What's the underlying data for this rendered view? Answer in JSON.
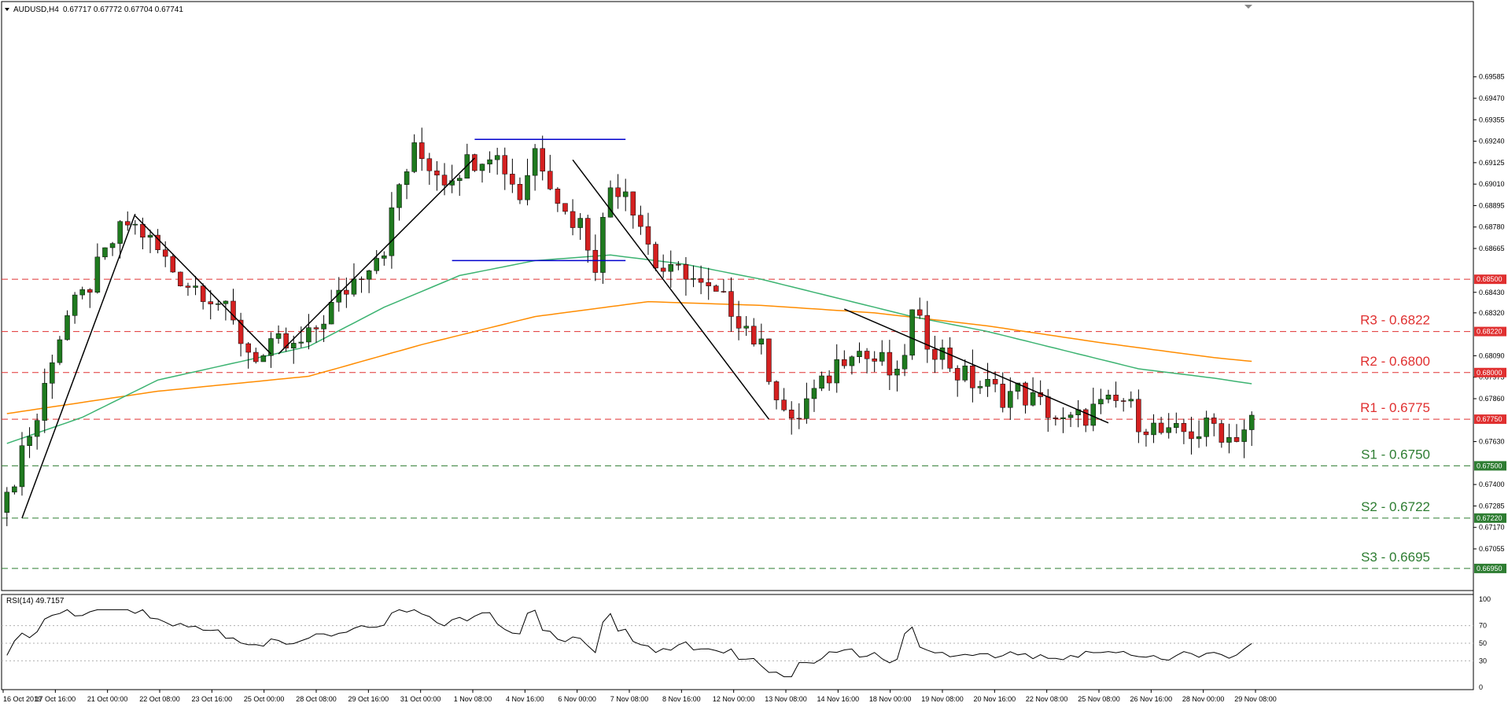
{
  "header": {
    "title": "AUDUSD,H4",
    "ohlc": "0.67717 0.67772 0.67704 0.67741"
  },
  "rsi": {
    "label": "RSI(14) 49.7157",
    "value": 49.7157,
    "period": 14,
    "levels": [
      30,
      50,
      70
    ],
    "axis_ticks": [
      "100",
      "70",
      "50",
      "30",
      "0"
    ],
    "color": "#000000"
  },
  "colors": {
    "bull": "#1f7a1f",
    "bear": "#d42020",
    "ma_fast": "#3cb371",
    "ma_slow": "#ff8c00",
    "resistance": "#e03030",
    "support": "#2e7d32",
    "trendline": "#000000",
    "range_box": "#0000cd"
  },
  "chart_data": {
    "type": "candlestick",
    "symbol": "AUDUSD",
    "timeframe": "H4",
    "ylim": [
      0.6684,
      0.6998
    ],
    "y_ticks": [
      "0.69585",
      "0.69470",
      "0.69355",
      "0.69240",
      "0.69125",
      "0.69010",
      "0.68895",
      "0.68780",
      "0.68665",
      "0.68430",
      "0.68320",
      "0.68090",
      "0.67975",
      "0.67860",
      "0.67630",
      "0.67400",
      "0.67285",
      "0.67170",
      "0.67055"
    ],
    "x_ticks": [
      "16 Oct 2019",
      "17 Oct 16:00",
      "21 Oct 00:00",
      "22 Oct 08:00",
      "23 Oct 16:00",
      "25 Oct 00:00",
      "28 Oct 08:00",
      "29 Oct 16:00",
      "31 Oct 00:00",
      "1 Nov 08:00",
      "4 Nov 16:00",
      "6 Nov 00:00",
      "7 Nov 08:00",
      "8 Nov 16:00",
      "12 Nov 00:00",
      "13 Nov 08:00",
      "14 Nov 16:00",
      "18 Nov 00:00",
      "19 Nov 08:00",
      "20 Nov 16:00",
      "22 Nov 08:00",
      "25 Nov 08:00",
      "26 Nov 16:00",
      "28 Nov 00:00",
      "29 Nov 08:00"
    ],
    "price_path": [
      [
        0,
        0.673
      ],
      [
        2,
        0.676
      ],
      [
        4,
        0.6775
      ],
      [
        6,
        0.681
      ],
      [
        8,
        0.683
      ],
      [
        10,
        0.684
      ],
      [
        12,
        0.6855
      ],
      [
        14,
        0.687
      ],
      [
        16,
        0.688
      ],
      [
        18,
        0.6875
      ],
      [
        20,
        0.6865
      ],
      [
        22,
        0.6855
      ],
      [
        24,
        0.6848
      ],
      [
        26,
        0.6845
      ],
      [
        28,
        0.6838
      ],
      [
        30,
        0.6825
      ],
      [
        32,
        0.6812
      ],
      [
        34,
        0.6808
      ],
      [
        36,
        0.6815
      ],
      [
        38,
        0.6812
      ],
      [
        40,
        0.6818
      ],
      [
        42,
        0.683
      ],
      [
        44,
        0.684
      ],
      [
        46,
        0.685
      ],
      [
        48,
        0.686
      ],
      [
        50,
        0.6868
      ],
      [
        52,
        0.69
      ],
      [
        54,
        0.6918
      ],
      [
        56,
        0.6912
      ],
      [
        58,
        0.6905
      ],
      [
        60,
        0.691
      ],
      [
        62,
        0.6915
      ],
      [
        64,
        0.692
      ],
      [
        66,
        0.691
      ],
      [
        68,
        0.6895
      ],
      [
        70,
        0.692
      ],
      [
        72,
        0.6905
      ],
      [
        74,
        0.6885
      ],
      [
        76,
        0.688
      ],
      [
        78,
        0.686
      ],
      [
        80,
        0.69
      ],
      [
        82,
        0.69
      ],
      [
        84,
        0.688
      ],
      [
        86,
        0.6858
      ],
      [
        88,
        0.6852
      ],
      [
        90,
        0.6855
      ],
      [
        92,
        0.6845
      ],
      [
        94,
        0.684
      ],
      [
        96,
        0.6835
      ],
      [
        98,
        0.6825
      ],
      [
        100,
        0.6812
      ],
      [
        102,
        0.679
      ],
      [
        104,
        0.677
      ],
      [
        106,
        0.6785
      ],
      [
        108,
        0.6792
      ],
      [
        110,
        0.6805
      ],
      [
        112,
        0.6815
      ],
      [
        114,
        0.6808
      ],
      [
        116,
        0.6805
      ],
      [
        118,
        0.6795
      ],
      [
        120,
        0.683
      ],
      [
        122,
        0.6818
      ],
      [
        124,
        0.681
      ],
      [
        126,
        0.68
      ],
      [
        128,
        0.6795
      ],
      [
        130,
        0.6792
      ],
      [
        132,
        0.6788
      ],
      [
        134,
        0.679
      ],
      [
        136,
        0.6785
      ],
      [
        138,
        0.678
      ],
      [
        140,
        0.6772
      ],
      [
        142,
        0.6775
      ],
      [
        144,
        0.678
      ],
      [
        146,
        0.6782
      ],
      [
        148,
        0.6785
      ],
      [
        150,
        0.6775
      ],
      [
        152,
        0.677
      ],
      [
        154,
        0.6765
      ],
      [
        156,
        0.6768
      ],
      [
        158,
        0.6768
      ],
      [
        160,
        0.6772
      ],
      [
        162,
        0.6765
      ],
      [
        164,
        0.677
      ],
      [
        165,
        0.6774
      ]
    ],
    "ma_fast": [
      [
        0,
        0.6762
      ],
      [
        10,
        0.6776
      ],
      [
        20,
        0.6796
      ],
      [
        30,
        0.6805
      ],
      [
        40,
        0.6814
      ],
      [
        50,
        0.6835
      ],
      [
        60,
        0.6852
      ],
      [
        70,
        0.686
      ],
      [
        80,
        0.6863
      ],
      [
        90,
        0.6858
      ],
      [
        100,
        0.685
      ],
      [
        110,
        0.684
      ],
      [
        120,
        0.683
      ],
      [
        130,
        0.6822
      ],
      [
        140,
        0.6812
      ],
      [
        150,
        0.6802
      ],
      [
        160,
        0.6797
      ],
      [
        165,
        0.6794
      ]
    ],
    "ma_slow": [
      [
        0,
        0.6778
      ],
      [
        20,
        0.679
      ],
      [
        40,
        0.6798
      ],
      [
        55,
        0.6815
      ],
      [
        70,
        0.683
      ],
      [
        85,
        0.6838
      ],
      [
        100,
        0.6836
      ],
      [
        115,
        0.6832
      ],
      [
        130,
        0.6825
      ],
      [
        145,
        0.6816
      ],
      [
        160,
        0.6808
      ],
      [
        165,
        0.6806
      ]
    ],
    "trendlines": [
      [
        [
          2,
          0.6722
        ],
        [
          17,
          0.6885
        ]
      ],
      [
        [
          17,
          0.6884
        ],
        [
          35,
          0.681
        ]
      ],
      [
        [
          36,
          0.681
        ],
        [
          62,
          0.6915
        ]
      ],
      [
        [
          75,
          0.6914
        ],
        [
          101,
          0.6775
        ]
      ],
      [
        [
          111,
          0.6834
        ],
        [
          146,
          0.6773
        ]
      ]
    ],
    "range_box": {
      "top": 0.6925,
      "bottom": 0.686,
      "x_start": 62,
      "x_end": 82
    },
    "levels": [
      {
        "label": "",
        "tag": "0.68500",
        "price": 0.685,
        "kind": "resistance"
      },
      {
        "label": "R3 - 0.6822",
        "tag": "0.68220",
        "price": 0.6822,
        "kind": "resistance"
      },
      {
        "label": "R2 - 0.6800",
        "tag": "0.68000",
        "price": 0.68,
        "kind": "resistance"
      },
      {
        "label": "R1 - 0.6775",
        "tag": "0.67750",
        "price": 0.6775,
        "kind": "resistance"
      },
      {
        "label": "S1 - 0.6750",
        "tag": "0.67500",
        "price": 0.675,
        "kind": "support"
      },
      {
        "label": "S2 - 0.6722",
        "tag": "0.67220",
        "price": 0.6722,
        "kind": "support"
      },
      {
        "label": "S3 - 0.6695",
        "tag": "0.66950",
        "price": 0.6695,
        "kind": "support"
      }
    ]
  }
}
